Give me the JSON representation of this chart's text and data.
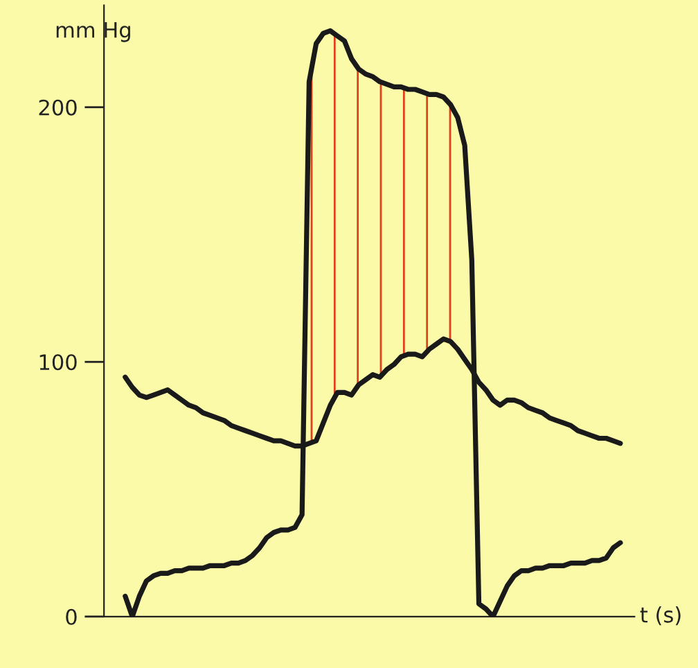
{
  "chart_data": {
    "type": "line",
    "ylabel": "mm Hg",
    "xlabel": "t (s)",
    "categories": [
      null,
      null,
      null,
      null,
      null,
      null,
      null,
      null,
      null,
      null,
      null,
      null,
      null,
      null,
      null,
      null,
      null,
      null,
      null,
      null,
      null,
      null,
      null,
      null,
      null,
      null,
      null,
      null,
      null,
      null,
      null,
      null,
      null,
      null,
      null,
      null,
      null,
      null,
      null,
      null,
      null,
      null,
      null,
      null,
      null,
      null,
      null,
      null,
      null,
      null,
      null,
      null,
      null,
      null,
      null,
      null,
      null,
      null,
      null,
      null,
      null,
      null,
      null,
      null,
      null,
      null,
      null,
      null,
      null,
      null,
      null
    ],
    "series": [
      {
        "color": "#1a1a1a",
        "values": [
          8,
          0,
          8,
          14,
          16,
          17,
          17,
          18,
          18,
          19,
          19,
          19,
          20,
          20,
          20,
          21,
          21,
          22,
          24,
          27,
          31,
          33,
          34,
          34,
          35,
          40,
          210,
          225,
          229,
          230,
          228,
          226,
          219,
          215,
          213,
          212,
          210,
          209,
          208,
          208,
          207,
          207,
          206,
          205,
          205,
          204,
          201,
          196,
          185,
          140,
          5,
          3,
          0,
          6,
          12,
          16,
          18,
          18,
          19,
          19,
          20,
          20,
          20,
          21,
          21,
          21,
          22,
          22,
          23,
          27,
          29
        ]
      },
      {
        "color": "#1a1a1a",
        "values": [
          94,
          90,
          87,
          86,
          87,
          88,
          89,
          87,
          85,
          83,
          82,
          80,
          79,
          78,
          77,
          75,
          74,
          73,
          72,
          71,
          70,
          69,
          69,
          68,
          67,
          67,
          68,
          69,
          76,
          83,
          88,
          88,
          87,
          91,
          93,
          95,
          94,
          97,
          99,
          102,
          103,
          103,
          102,
          105,
          107,
          109,
          108,
          105,
          101,
          97,
          92,
          89,
          85,
          83,
          85,
          85,
          84,
          82,
          81,
          80,
          78,
          77,
          76,
          75,
          73,
          72,
          71,
          70,
          70,
          69,
          68
        ]
      }
    ],
    "ylim": [
      0,
      240
    ],
    "yticks": [
      0,
      100,
      200
    ],
    "tick_labels": "y",
    "grid": false,
    "marker": "none",
    "line_style": "solid"
  }
}
